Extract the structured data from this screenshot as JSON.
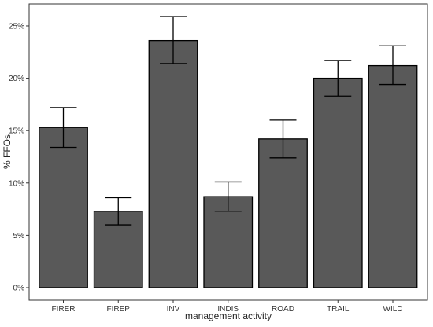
{
  "chart_data": {
    "type": "bar",
    "title": "",
    "xlabel": "management activity",
    "ylabel": "% FFOs",
    "categories": [
      "FIRER",
      "FIREP",
      "INV",
      "INDIS",
      "ROAD",
      "TRAIL",
      "WILD"
    ],
    "values": [
      15.3,
      7.3,
      23.6,
      8.7,
      14.2,
      20.0,
      21.2
    ],
    "error_low": [
      13.4,
      6.0,
      21.4,
      7.3,
      12.4,
      18.3,
      19.4
    ],
    "error_high": [
      17.2,
      8.6,
      25.9,
      10.1,
      16.0,
      21.7,
      23.1
    ],
    "ylim": [
      0,
      26.8
    ],
    "yticks": [
      0,
      5,
      10,
      15,
      20,
      25
    ],
    "ytick_labels": [
      "0%",
      "5%",
      "10%",
      "15%",
      "20%",
      "25%"
    ],
    "grid": false,
    "legend": "none",
    "colors": {
      "bar_fill": "#595959",
      "bar_stroke": "#000000",
      "error_bar": "#000000",
      "axis_frame": "#333333"
    }
  }
}
